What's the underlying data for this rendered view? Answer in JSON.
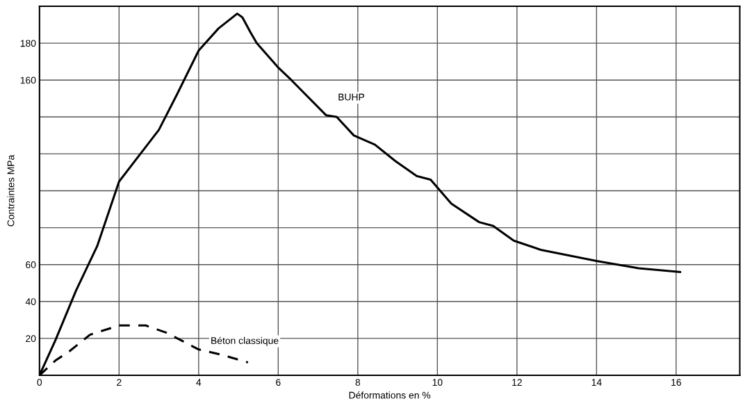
{
  "chart_data": {
    "type": "line",
    "xlabel": "Déformations en %",
    "ylabel": "Contraintes MPa",
    "xlim": [
      0,
      17.6
    ],
    "ylim": [
      0,
      200
    ],
    "xticks": [
      0,
      2,
      4,
      6,
      8,
      10,
      12,
      14,
      16
    ],
    "yticks": [
      20,
      40,
      60,
      {
        "value": 80,
        "label": null
      },
      {
        "value": 100,
        "label": null
      },
      {
        "value": 120,
        "label": null
      },
      {
        "value": 140,
        "label": null
      },
      160,
      180,
      {
        "value": 200,
        "label": null
      }
    ],
    "grid": true,
    "legend": false,
    "series": [
      {
        "name": "BUHP",
        "color": "#000000",
        "line_style": "solid",
        "x": [
          0,
          0.4,
          0.92,
          1.45,
          2,
          3,
          3.45,
          4,
          4.5,
          4.97,
          5.1,
          5.3,
          5.46,
          5.99,
          6.33,
          7.2,
          7.47,
          7.9,
          8.43,
          8.95,
          9.48,
          9.83,
          10.35,
          11.05,
          11.4,
          11.92,
          12.6,
          14.0,
          15.06,
          16.1
        ],
        "values": [
          0,
          19,
          46,
          70,
          105,
          133,
          152,
          176,
          188,
          196,
          194,
          186,
          180,
          167,
          160,
          141,
          140,
          130,
          125,
          116,
          108,
          106,
          93,
          83,
          81,
          73,
          68,
          62,
          58,
          56
        ]
      },
      {
        "name": "Béton classique",
        "color": "#000000",
        "line_style": "dashed",
        "x": [
          0,
          0.4,
          0.75,
          1.27,
          2,
          2.67,
          3.2,
          4,
          4.6,
          5.24
        ],
        "values": [
          0,
          8,
          13,
          22,
          27,
          27,
          23,
          14,
          11,
          7
        ]
      }
    ]
  }
}
